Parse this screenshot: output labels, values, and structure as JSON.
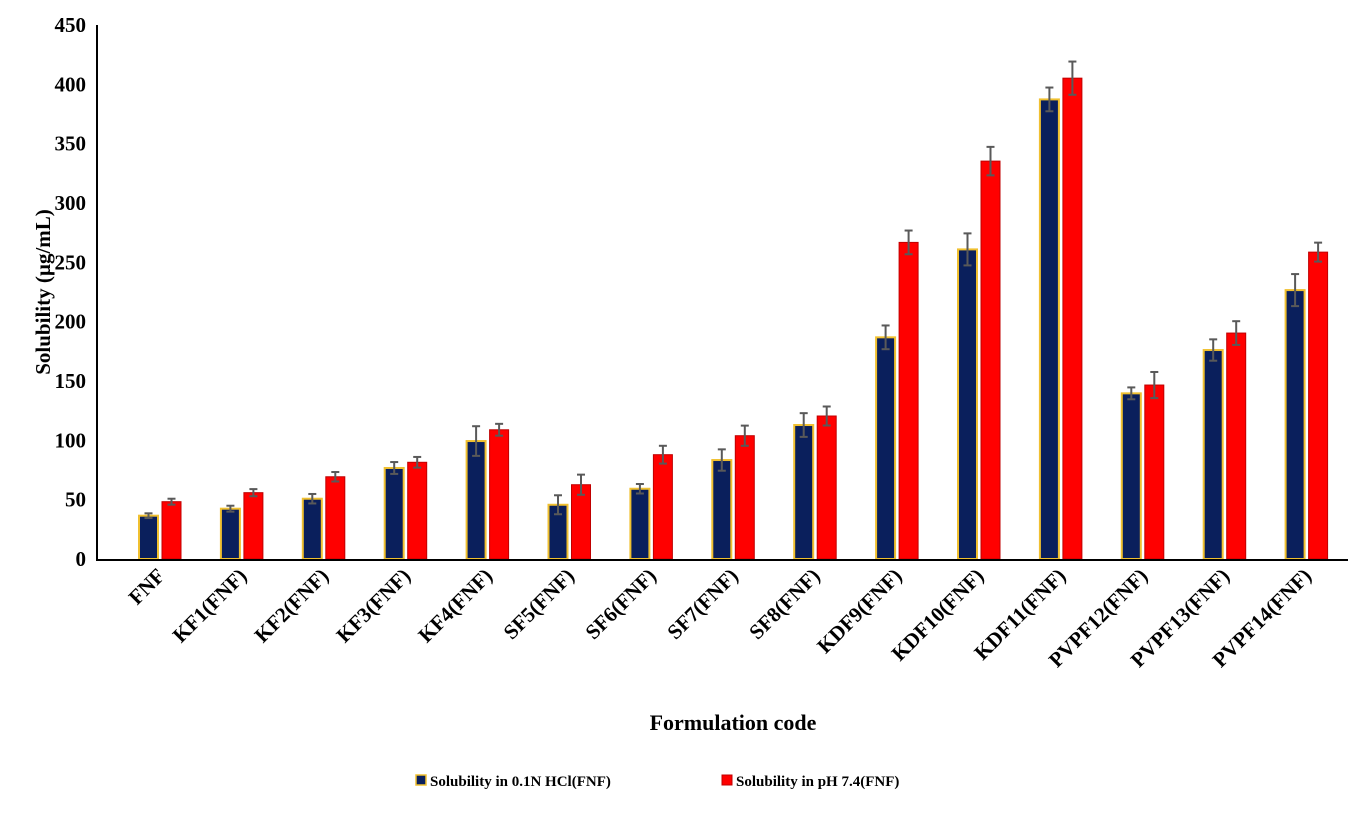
{
  "chart_data": {
    "type": "bar",
    "title": "",
    "xlabel": "Formulation code",
    "ylabel": "Solubility (µg/mL)",
    "ylim": [
      0,
      450
    ],
    "yticks": [
      0,
      50,
      100,
      150,
      200,
      250,
      300,
      350,
      400,
      450
    ],
    "grid": false,
    "legend_position": "bottom",
    "categories": [
      "FNF",
      "KF1(FNF)",
      "KF2(FNF)",
      "KF3(FNF)",
      "KF4(FNF)",
      "SF5(FNF)",
      "SF6(FNF)",
      "SF7(FNF)",
      "SF8(FNF)",
      "KDF9(FNF)",
      "KDF10(FNF)",
      "KDF11(FNF)",
      "PVPF12(FNF)",
      "PVPF13(FNF)",
      "PVPF14(FNF)"
    ],
    "series": [
      {
        "name": "Solubility in 0.1N HCl(FNF)",
        "color": "#0a1f5c",
        "border_color": "#f0c030",
        "values": [
          36.5,
          42.4,
          50.8,
          76.7,
          99.4,
          45.7,
          59.2,
          83.4,
          112.9,
          186.8,
          260.9,
          387.3,
          139.6,
          176.1,
          226.6
        ],
        "errors": [
          2,
          2.5,
          4,
          5,
          12.5,
          8,
          4,
          9,
          10,
          10,
          13.5,
          10,
          5,
          9,
          13.5
        ]
      },
      {
        "name": "Solubility in pH 7.4(FNF)",
        "color": "#ff0000",
        "border_color": "#c00000",
        "values": [
          48.3,
          55.9,
          69.3,
          81.5,
          108.9,
          62.6,
          87.9,
          103.9,
          120.5,
          266.8,
          335.3,
          405.2,
          146.6,
          190.4,
          258.6
        ],
        "errors": [
          2.5,
          3,
          4,
          4.5,
          5,
          8.5,
          7.5,
          8.5,
          8,
          10,
          12,
          14,
          11,
          10,
          8
        ]
      }
    ],
    "error_bar_color": "#595959"
  }
}
